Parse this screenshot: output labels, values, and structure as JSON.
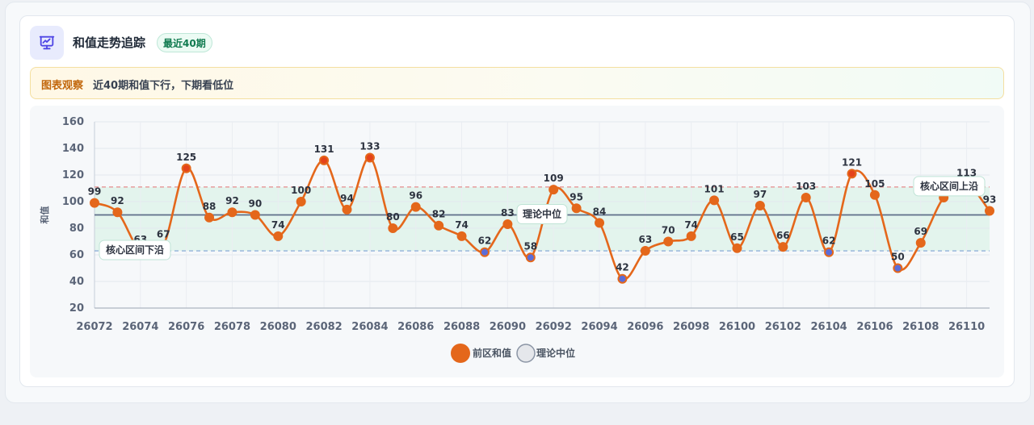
{
  "header": {
    "icon": "presentation-chart-icon",
    "title": "和值走势追踪",
    "badge": "最近40期"
  },
  "notice": {
    "label": "图表观察",
    "text": "近40期和值下行，下期看低位"
  },
  "colors": {
    "line": "#e4671b",
    "median_line": "#5e6e89",
    "band_fill": "#e3f4ed",
    "upper_dash": "#e58b8b",
    "lower_dash": "#7ea2d4",
    "blue_marker": "#5b6dd8"
  },
  "chart_data": {
    "type": "line",
    "ylabel": "和值",
    "ylim": [
      20,
      160
    ],
    "yticks": [
      20,
      40,
      60,
      80,
      100,
      120,
      140,
      160
    ],
    "xticks": [
      "26072",
      "26074",
      "26076",
      "26078",
      "26080",
      "26082",
      "26084",
      "26086",
      "26088",
      "26090",
      "26092",
      "26094",
      "26096",
      "26098",
      "26100",
      "26102",
      "26104",
      "26106",
      "26108",
      "26110"
    ],
    "x": [
      26072,
      26073,
      26074,
      26075,
      26076,
      26077,
      26078,
      26079,
      26080,
      26081,
      26082,
      26083,
      26084,
      26085,
      26086,
      26087,
      26088,
      26089,
      26090,
      26091,
      26092,
      26093,
      26094,
      26095,
      26096,
      26097,
      26098,
      26099,
      26100,
      26101,
      26102,
      26103,
      26104,
      26105,
      26106,
      26107,
      26108,
      26109,
      26110,
      26111
    ],
    "series": [
      {
        "name": "前区和值",
        "values": [
          99,
          92,
          63,
          67,
          125,
          88,
          92,
          90,
          74,
          100,
          131,
          94,
          133,
          80,
          96,
          82,
          74,
          62,
          83,
          58,
          109,
          95,
          84,
          42,
          63,
          70,
          74,
          101,
          65,
          97,
          66,
          103,
          62,
          121,
          105,
          50,
          69,
          103,
          113,
          93
        ]
      }
    ],
    "reference_lines": {
      "median": {
        "name": "理论中位",
        "value": 90
      },
      "band_upper": {
        "label": "核心区间上沿",
        "value": 111
      },
      "band_lower": {
        "label": "核心区间下沿",
        "value": 63
      }
    },
    "legend": [
      "前区和值",
      "理论中位"
    ],
    "legend_position": "bottom-center",
    "grid": true
  }
}
